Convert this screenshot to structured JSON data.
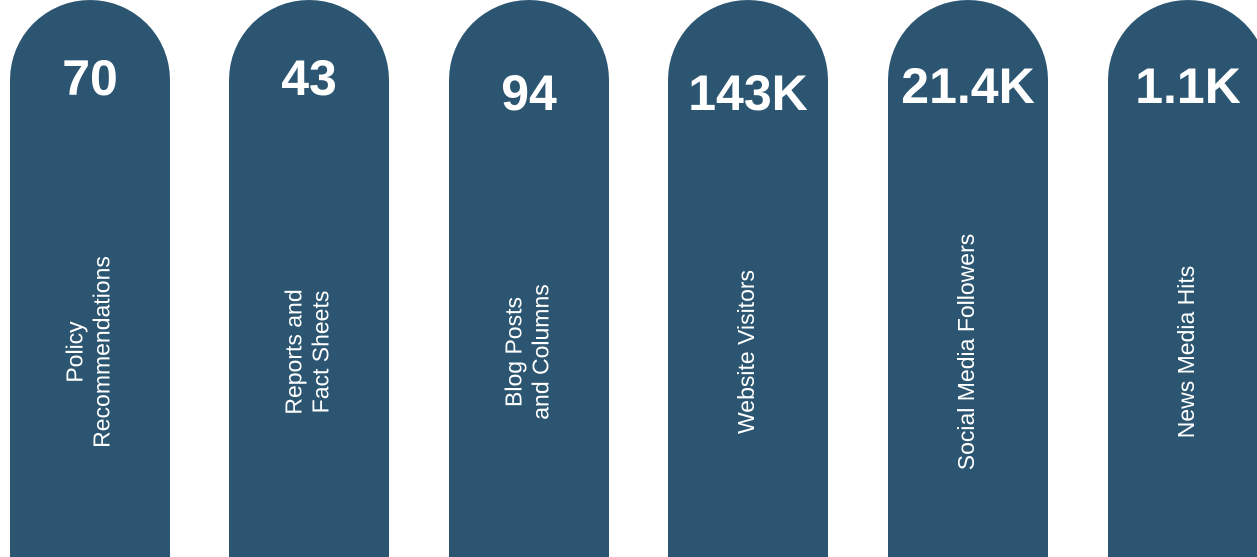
{
  "items": [
    {
      "value": "70",
      "label": [
        "Policy",
        "Recommendations"
      ]
    },
    {
      "value": "43",
      "label": [
        "Reports and",
        "Fact Sheets"
      ]
    },
    {
      "value": "94",
      "label": [
        "Blog Posts",
        "and Columns"
      ]
    },
    {
      "value": "143K",
      "label": [
        "Website Visitors"
      ]
    },
    {
      "value": "21.4K",
      "label": [
        "Social Media Followers"
      ]
    },
    {
      "value": "1.1K",
      "label": [
        "News Media Hits"
      ]
    }
  ]
}
